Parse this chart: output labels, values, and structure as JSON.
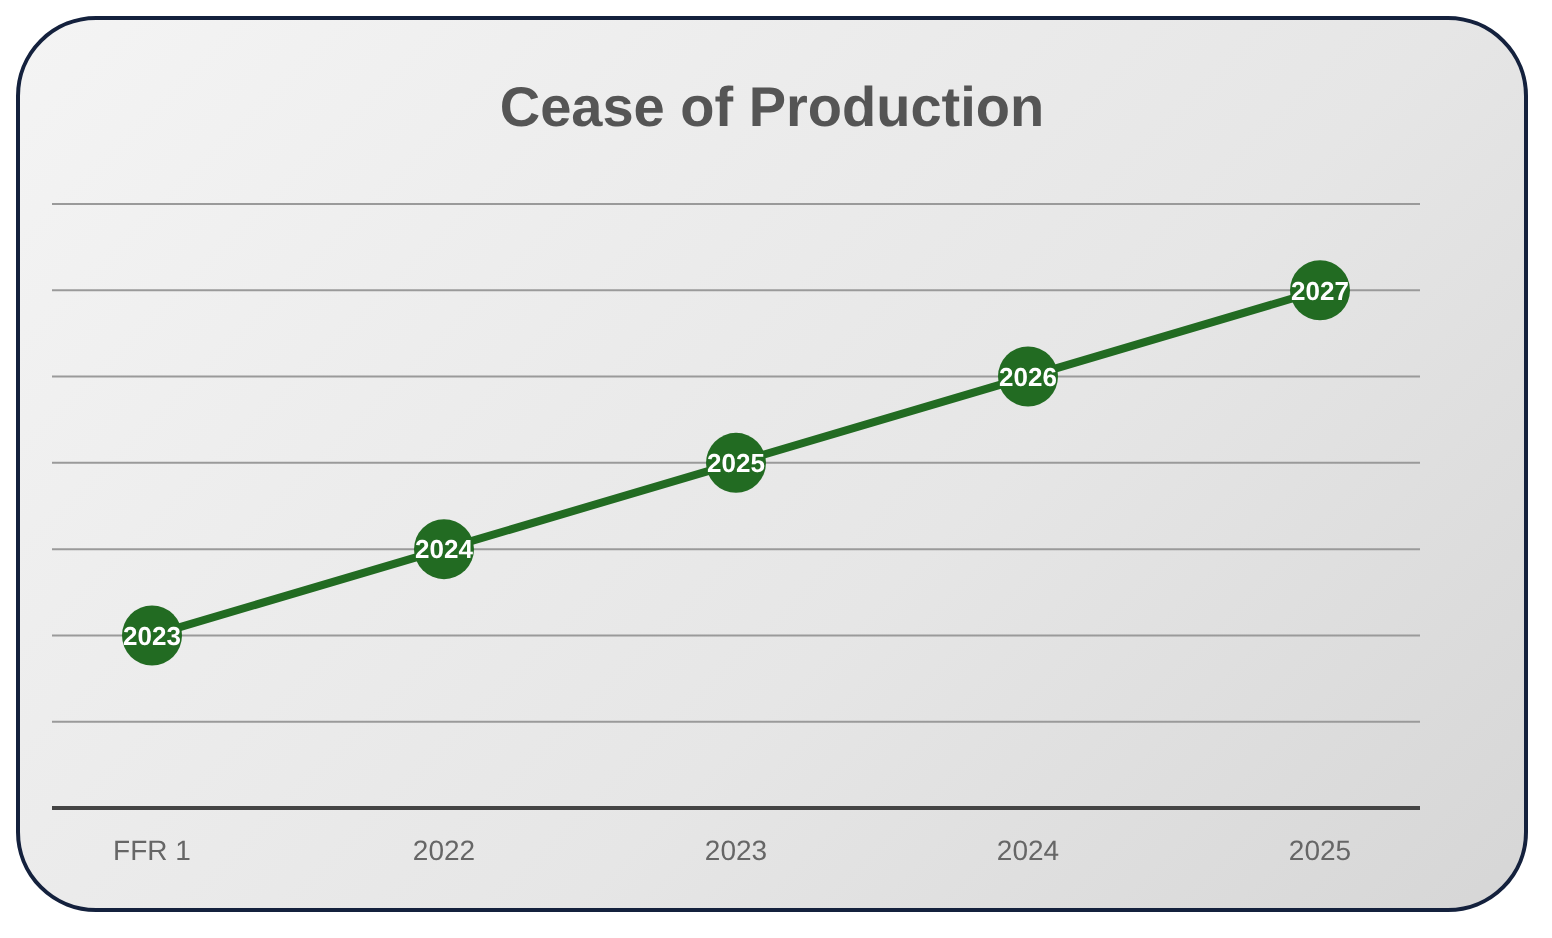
{
  "chart_data": {
    "type": "line",
    "title": "Cease of Production",
    "categories": [
      "FFR 1",
      "2022",
      "2023",
      "2024",
      "2025"
    ],
    "series": [
      {
        "color": "#226b22",
        "values": [
          2023,
          2024,
          2025,
          2026,
          2027
        ]
      }
    ],
    "ylim": [
      2021,
      2028
    ],
    "yticks": [
      {
        "value": 2021,
        "label": null
      },
      {
        "value": 2022,
        "label": null
      },
      {
        "value": 2023,
        "label": null
      },
      {
        "value": 2024,
        "label": null
      },
      {
        "value": 2025,
        "label": null
      },
      {
        "value": 2026,
        "label": null
      },
      {
        "value": 2027,
        "label": null
      },
      {
        "value": 2028,
        "label": null
      }
    ],
    "tick_labels": "x",
    "grid": "y",
    "data_labels": true,
    "marker": "circle",
    "line_style": "solid",
    "legend": false
  }
}
